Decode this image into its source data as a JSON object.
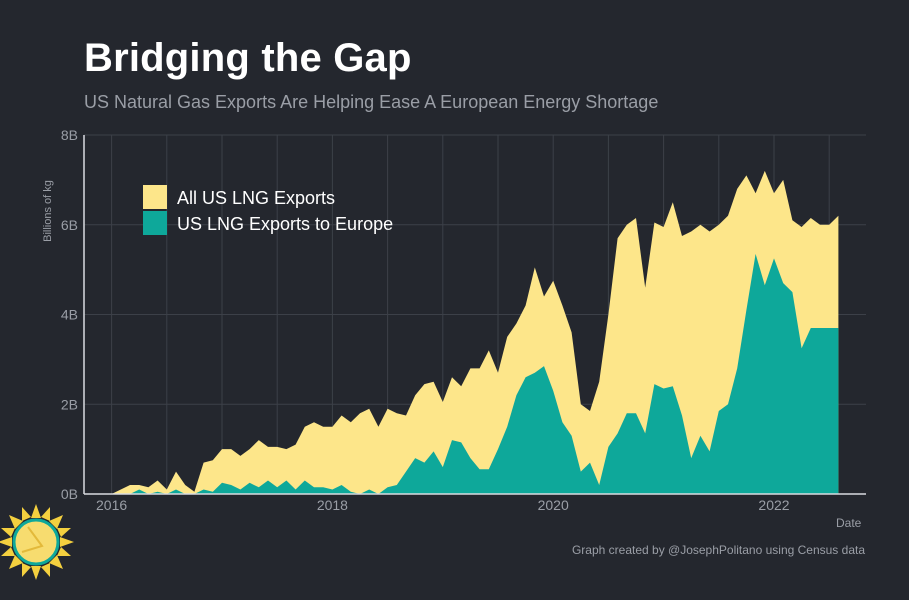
{
  "header": {
    "title": "Bridging the Gap",
    "subtitle": "US Natural Gas Exports Are Helping Ease A European Energy Shortage"
  },
  "footer": {
    "caption": "Graph created by @JosephPolitano using Census data",
    "logo_icon": "sun-icon"
  },
  "colors": {
    "background": "#24272e",
    "all_exports": "#fde68a",
    "europe_exports": "#0ea89a",
    "grid": "#3c4048",
    "axis_text": "#9a9ea6"
  },
  "chart_data": {
    "type": "area",
    "title": "Bridging the Gap",
    "subtitle": "US Natural Gas Exports Are Helping Ease A European Energy Shortage",
    "xlabel": "Date",
    "ylabel": "Billions of kg",
    "x_range": [
      "2015-10",
      "2022-11"
    ],
    "ylim": [
      0,
      8
    ],
    "x_ticks": [
      {
        "label": "2016",
        "date": "2016-01"
      },
      {
        "label": "2018",
        "date": "2018-01"
      },
      {
        "label": "2020",
        "date": "2020-01"
      },
      {
        "label": "2022",
        "date": "2022-01"
      }
    ],
    "y_ticks": [
      {
        "label": "0B",
        "value": 0
      },
      {
        "label": "2B",
        "value": 2
      },
      {
        "label": "4B",
        "value": 4
      },
      {
        "label": "6B",
        "value": 6
      },
      {
        "label": "8B",
        "value": 8
      }
    ],
    "grid": true,
    "legend_position": "top-left",
    "x": [
      "2016-01",
      "2016-02",
      "2016-03",
      "2016-04",
      "2016-05",
      "2016-06",
      "2016-07",
      "2016-08",
      "2016-09",
      "2016-10",
      "2016-11",
      "2016-12",
      "2017-01",
      "2017-02",
      "2017-03",
      "2017-04",
      "2017-05",
      "2017-06",
      "2017-07",
      "2017-08",
      "2017-09",
      "2017-10",
      "2017-11",
      "2017-12",
      "2018-01",
      "2018-02",
      "2018-03",
      "2018-04",
      "2018-05",
      "2018-06",
      "2018-07",
      "2018-08",
      "2018-09",
      "2018-10",
      "2018-11",
      "2018-12",
      "2019-01",
      "2019-02",
      "2019-03",
      "2019-04",
      "2019-05",
      "2019-06",
      "2019-07",
      "2019-08",
      "2019-09",
      "2019-10",
      "2019-11",
      "2019-12",
      "2020-01",
      "2020-02",
      "2020-03",
      "2020-04",
      "2020-05",
      "2020-06",
      "2020-07",
      "2020-08",
      "2020-09",
      "2020-10",
      "2020-11",
      "2020-12",
      "2021-01",
      "2021-02",
      "2021-03",
      "2021-04",
      "2021-05",
      "2021-06",
      "2021-07",
      "2021-08",
      "2021-09",
      "2021-10",
      "2021-11",
      "2021-12",
      "2022-01",
      "2022-02",
      "2022-03",
      "2022-04",
      "2022-05",
      "2022-06",
      "2022-07",
      "2022-08"
    ],
    "series": [
      {
        "name": "All US LNG Exports",
        "values": [
          0.0,
          0.1,
          0.2,
          0.2,
          0.15,
          0.3,
          0.1,
          0.5,
          0.2,
          0.05,
          0.7,
          0.75,
          1.0,
          1.0,
          0.85,
          1.0,
          1.2,
          1.05,
          1.05,
          1.0,
          1.1,
          1.5,
          1.6,
          1.5,
          1.5,
          1.75,
          1.6,
          1.8,
          1.9,
          1.5,
          1.9,
          1.8,
          1.75,
          2.2,
          2.45,
          2.5,
          2.05,
          2.6,
          2.4,
          2.8,
          2.8,
          3.2,
          2.7,
          3.5,
          3.8,
          4.2,
          5.05,
          4.4,
          4.75,
          4.2,
          3.6,
          2.0,
          1.85,
          2.5,
          4.0,
          5.7,
          6.0,
          6.15,
          4.6,
          6.05,
          5.95,
          6.5,
          5.75,
          5.85,
          6.0,
          5.85,
          6.0,
          6.2,
          6.8,
          7.1,
          6.7,
          7.2,
          6.7,
          7.0,
          6.1,
          5.95,
          6.15,
          6.0,
          6.0,
          6.2
        ],
        "color": "#fde68a"
      },
      {
        "name": "US LNG Exports to Europe",
        "values": [
          0.0,
          0.0,
          0.0,
          0.1,
          0.0,
          0.05,
          0.0,
          0.1,
          0.0,
          0.0,
          0.1,
          0.05,
          0.25,
          0.2,
          0.1,
          0.25,
          0.15,
          0.3,
          0.15,
          0.3,
          0.1,
          0.3,
          0.15,
          0.15,
          0.1,
          0.2,
          0.05,
          0.0,
          0.1,
          0.0,
          0.15,
          0.2,
          0.5,
          0.8,
          0.7,
          0.95,
          0.6,
          1.2,
          1.15,
          0.8,
          0.55,
          0.55,
          1.0,
          1.5,
          2.2,
          2.6,
          2.7,
          2.85,
          2.3,
          1.6,
          1.3,
          0.5,
          0.7,
          0.2,
          1.05,
          1.35,
          1.8,
          1.8,
          1.35,
          2.45,
          2.35,
          2.4,
          1.75,
          0.8,
          1.3,
          0.95,
          1.85,
          2.0,
          2.8,
          4.1,
          5.35,
          4.65,
          5.25,
          4.7,
          4.5,
          3.25,
          3.7,
          3.7,
          3.7,
          3.7
        ],
        "color": "#0ea89a"
      }
    ]
  }
}
